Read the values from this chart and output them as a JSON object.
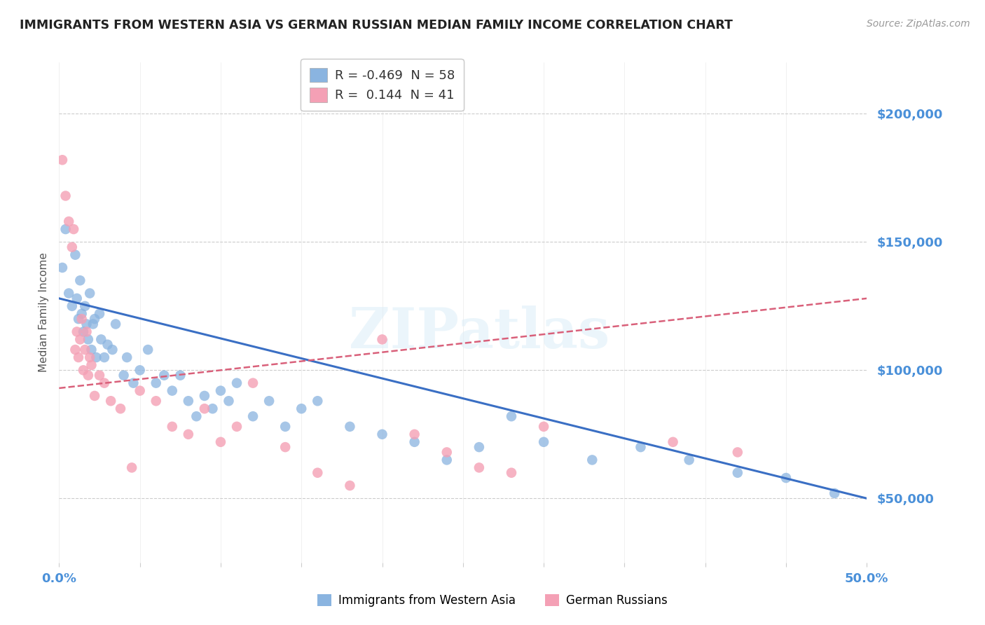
{
  "title": "IMMIGRANTS FROM WESTERN ASIA VS GERMAN RUSSIAN MEDIAN FAMILY INCOME CORRELATION CHART",
  "source": "Source: ZipAtlas.com",
  "ylabel": "Median Family Income",
  "y_ticks": [
    50000,
    100000,
    150000,
    200000
  ],
  "y_tick_labels": [
    "$50,000",
    "$100,000",
    "$150,000",
    "$200,000"
  ],
  "x_ticks": [
    0.0,
    5.0,
    10.0,
    15.0,
    20.0,
    25.0,
    30.0,
    35.0,
    40.0,
    45.0,
    50.0
  ],
  "xmin": 0.0,
  "xmax": 50.0,
  "ymin": 25000,
  "ymax": 220000,
  "legend_blue_r": "-0.469",
  "legend_blue_n": "58",
  "legend_pink_r": "0.144",
  "legend_pink_n": "41",
  "watermark": "ZIPatlas",
  "blue_color": "#8AB4E0",
  "pink_color": "#F4A0B5",
  "blue_line_color": "#3A6FC4",
  "pink_line_color": "#D9607A",
  "r_value_color": "#3A6FC4",
  "grid_color": "#CCCCCC",
  "title_color": "#222222",
  "axis_tick_color": "#4A90D9",
  "blue_scatter_x": [
    0.2,
    0.4,
    0.6,
    0.8,
    1.0,
    1.1,
    1.2,
    1.3,
    1.4,
    1.5,
    1.6,
    1.7,
    1.8,
    1.9,
    2.0,
    2.1,
    2.2,
    2.3,
    2.5,
    2.6,
    2.8,
    3.0,
    3.3,
    3.5,
    4.0,
    4.2,
    4.6,
    5.0,
    5.5,
    6.0,
    6.5,
    7.0,
    7.5,
    8.0,
    8.5,
    9.0,
    9.5,
    10.0,
    10.5,
    11.0,
    12.0,
    13.0,
    14.0,
    15.0,
    16.0,
    18.0,
    20.0,
    22.0,
    24.0,
    26.0,
    28.0,
    30.0,
    33.0,
    36.0,
    39.0,
    42.0,
    45.0,
    48.0
  ],
  "blue_scatter_y": [
    140000,
    155000,
    130000,
    125000,
    145000,
    128000,
    120000,
    135000,
    122000,
    115000,
    125000,
    118000,
    112000,
    130000,
    108000,
    118000,
    120000,
    105000,
    122000,
    112000,
    105000,
    110000,
    108000,
    118000,
    98000,
    105000,
    95000,
    100000,
    108000,
    95000,
    98000,
    92000,
    98000,
    88000,
    82000,
    90000,
    85000,
    92000,
    88000,
    95000,
    82000,
    88000,
    78000,
    85000,
    88000,
    78000,
    75000,
    72000,
    65000,
    70000,
    82000,
    72000,
    65000,
    70000,
    65000,
    60000,
    58000,
    52000
  ],
  "pink_scatter_x": [
    0.2,
    0.4,
    0.6,
    0.8,
    0.9,
    1.0,
    1.1,
    1.2,
    1.3,
    1.4,
    1.5,
    1.6,
    1.7,
    1.8,
    1.9,
    2.0,
    2.2,
    2.5,
    2.8,
    3.2,
    3.8,
    4.5,
    5.0,
    6.0,
    7.0,
    8.0,
    9.0,
    10.0,
    11.0,
    12.0,
    14.0,
    16.0,
    18.0,
    20.0,
    22.0,
    24.0,
    26.0,
    28.0,
    30.0,
    38.0,
    42.0
  ],
  "pink_scatter_y": [
    182000,
    168000,
    158000,
    148000,
    155000,
    108000,
    115000,
    105000,
    112000,
    120000,
    100000,
    108000,
    115000,
    98000,
    105000,
    102000,
    90000,
    98000,
    95000,
    88000,
    85000,
    62000,
    92000,
    88000,
    78000,
    75000,
    85000,
    72000,
    78000,
    95000,
    70000,
    60000,
    55000,
    112000,
    75000,
    68000,
    62000,
    60000,
    78000,
    72000,
    68000
  ],
  "blue_trend_x": [
    0.0,
    50.0
  ],
  "blue_trend_y": [
    128000,
    50000
  ],
  "pink_trend_x": [
    0.0,
    50.0
  ],
  "pink_trend_y": [
    93000,
    128000
  ]
}
